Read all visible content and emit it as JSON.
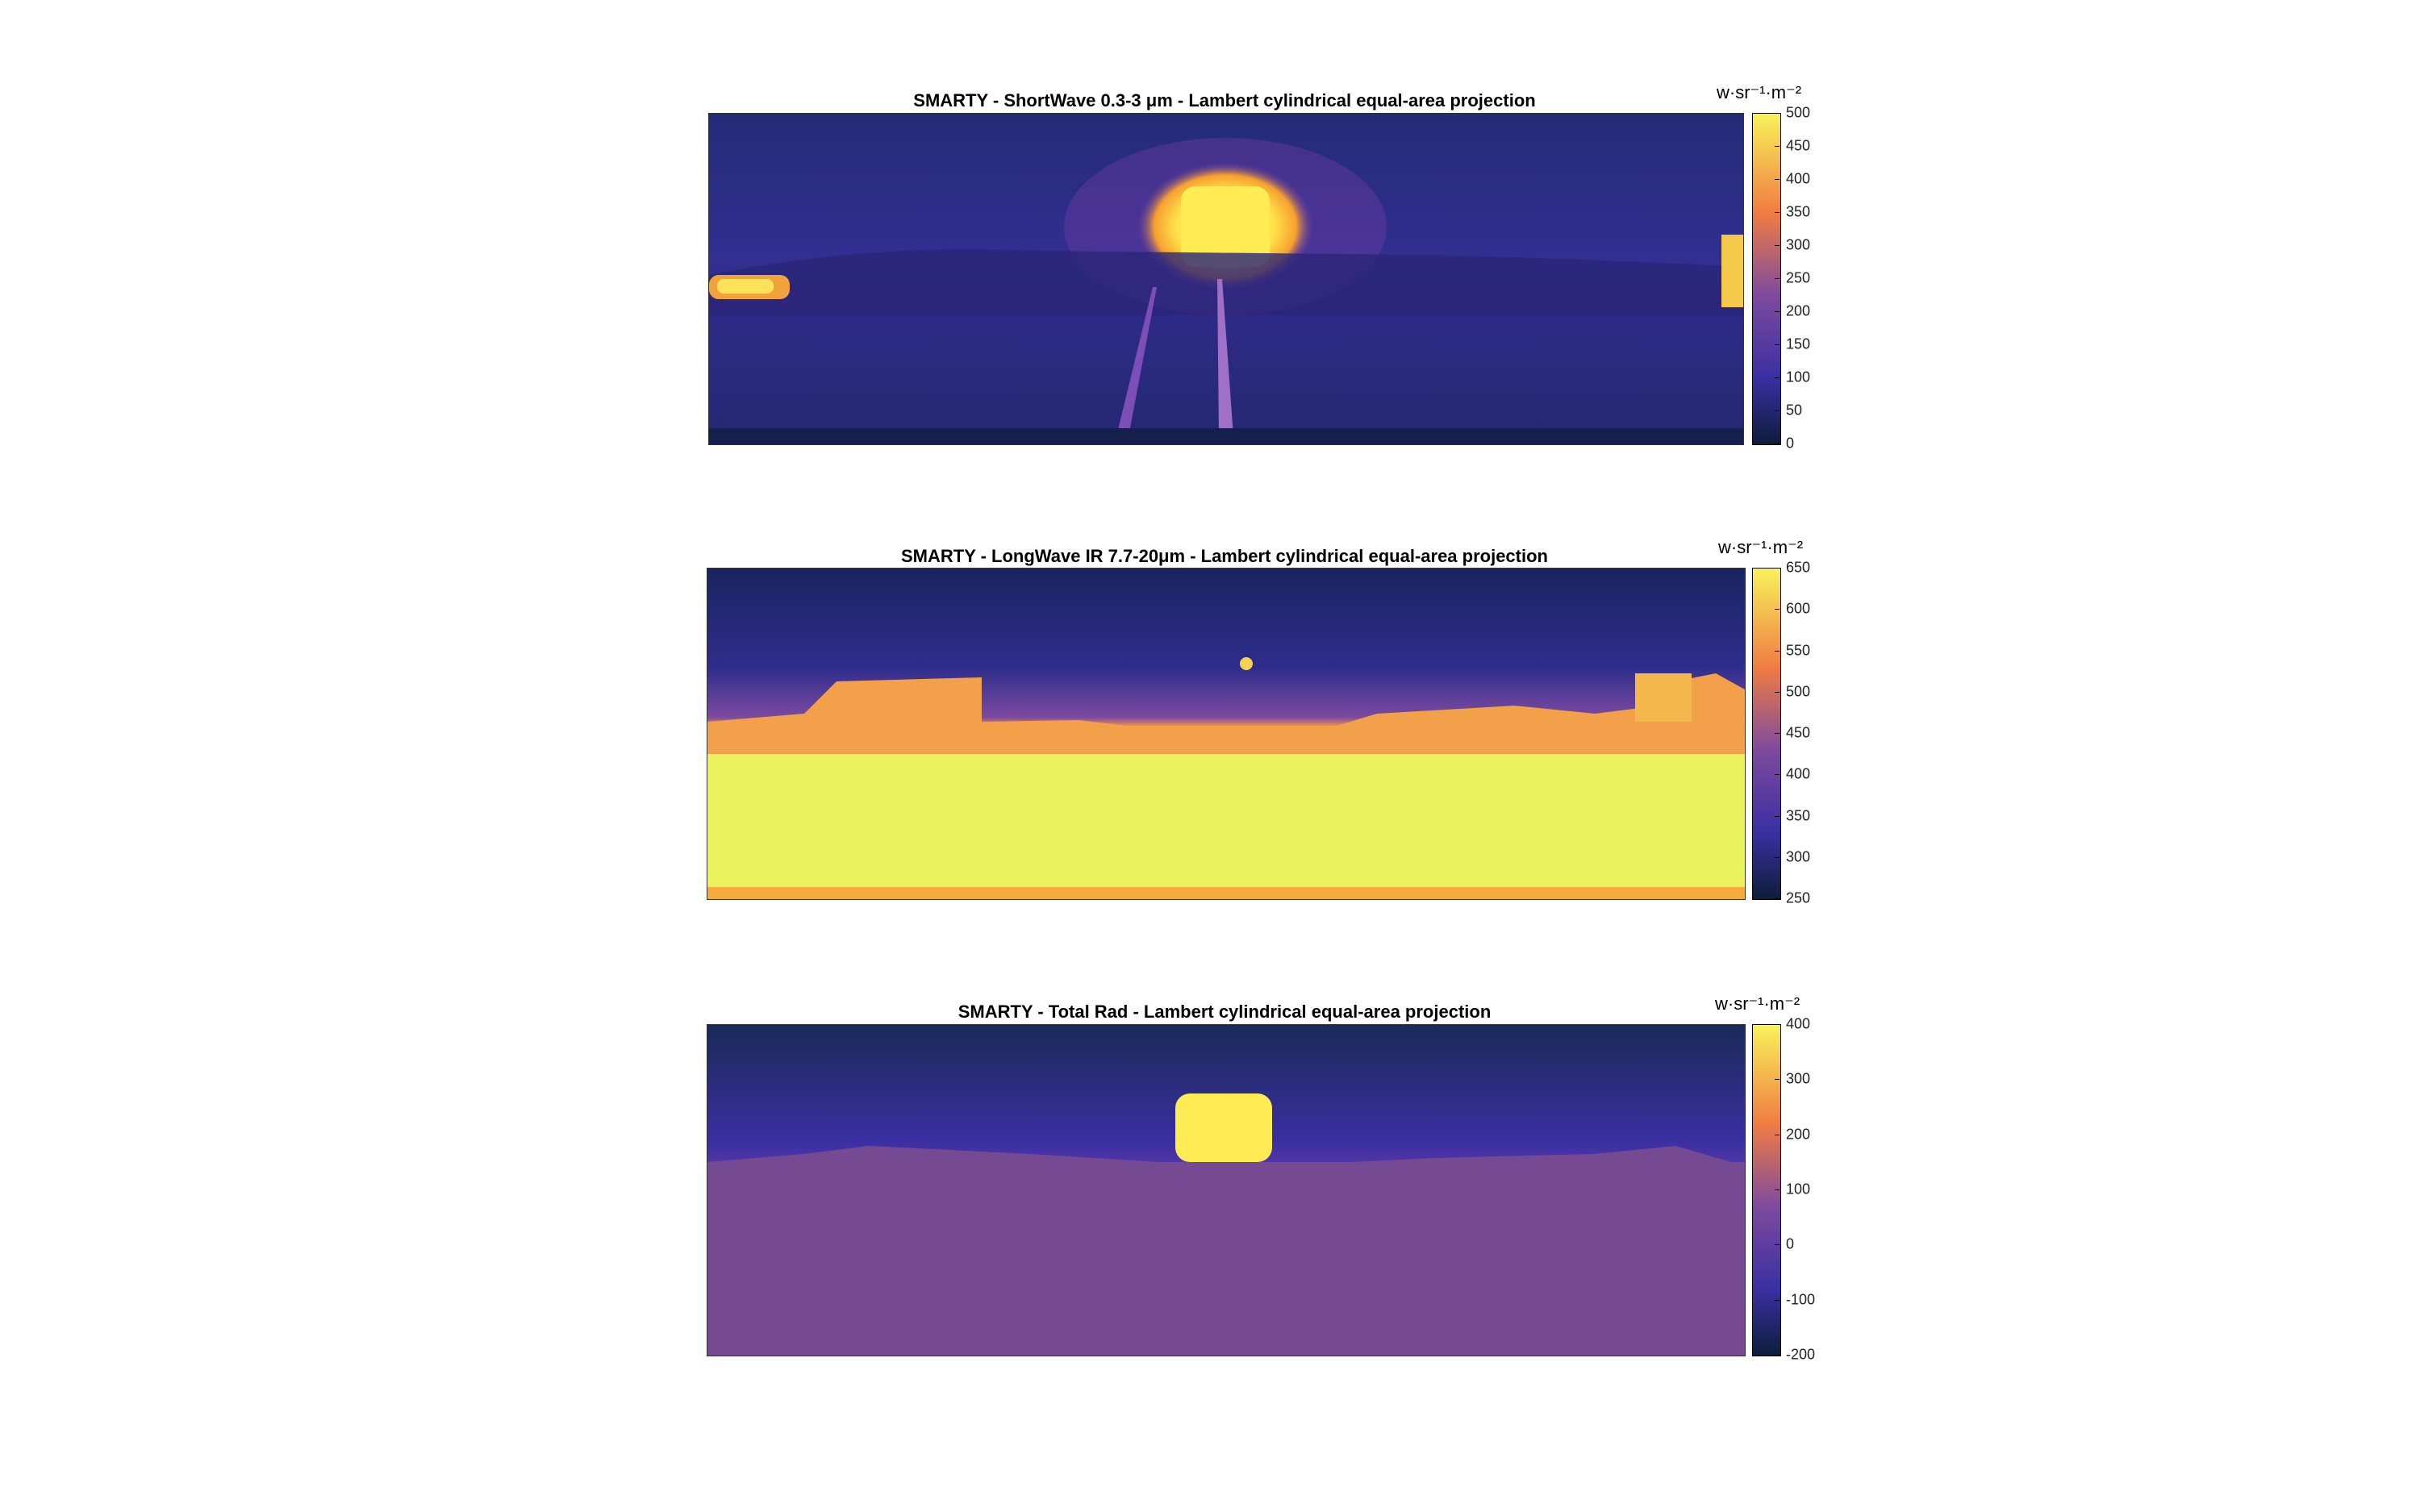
{
  "chart_data": [
    {
      "type": "heatmap",
      "title": "SMARTY - ShortWave 0.3-3 μm - Lambert cylindrical equal-area projection",
      "colorbar_unit": "w·sr⁻¹·m⁻²",
      "colorbar_ticks": [
        "0",
        "50",
        "100",
        "150",
        "200",
        "250",
        "300",
        "350",
        "400",
        "450",
        "500"
      ],
      "clim": [
        0,
        500
      ],
      "colormap": "plasma-like"
    },
    {
      "type": "heatmap",
      "title": "SMARTY - LongWave IR 7.7-20μm - Lambert cylindrical equal-area projection",
      "colorbar_unit": "w·sr⁻¹·m⁻²",
      "colorbar_ticks": [
        "250",
        "300",
        "350",
        "400",
        "450",
        "500",
        "550",
        "600",
        "650"
      ],
      "clim": [
        250,
        650
      ],
      "colormap": "plasma-like"
    },
    {
      "type": "heatmap",
      "title": "SMARTY - Total Rad - Lambert cylindrical equal-area projection",
      "colorbar_unit": "w·sr⁻¹·m⁻²",
      "colorbar_ticks": [
        "-200",
        "-100",
        "0",
        "100",
        "200",
        "300",
        "400"
      ],
      "clim": [
        -200,
        400
      ],
      "colormap": "plasma-like"
    }
  ]
}
